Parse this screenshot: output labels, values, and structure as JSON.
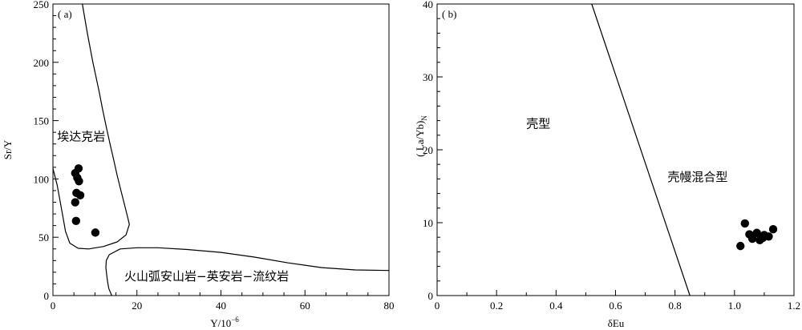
{
  "chart_data": [
    {
      "type": "scatter",
      "panel_label": "( a)",
      "xlabel": "Y/10",
      "xlabel_sup": "−6",
      "ylabel": "Sr/Y",
      "xlim": [
        0,
        80
      ],
      "ylim": [
        0,
        250
      ],
      "xticks": [
        0,
        20,
        40,
        60,
        80
      ],
      "yticks": [
        0,
        50,
        100,
        150,
        200,
        250
      ],
      "x_minor_step": 5,
      "y_minor_step": 10,
      "grid": false,
      "fields": [
        {
          "label": "埃达克岩",
          "x": 1,
          "y": 133
        },
        {
          "label": "火山弧安山岩−英安岩−流纹岩",
          "x": 17,
          "y": 13
        }
      ],
      "boundaries": [
        {
          "points": [
            [
              7,
              250
            ],
            [
              8.2,
              225
            ],
            [
              9.5,
              200
            ],
            [
              11,
              175
            ],
            [
              11.8,
              160
            ],
            [
              12.8,
              143
            ],
            [
              13.6,
              130
            ],
            [
              14.5,
              116
            ],
            [
              15.3,
              103
            ],
            [
              16.2,
              90
            ],
            [
              17.1,
              77
            ],
            [
              17.8,
              67
            ],
            [
              18.2,
              61
            ],
            [
              17.4,
              52
            ],
            [
              15.3,
              46
            ],
            [
              12,
              42
            ],
            [
              8.5,
              40
            ],
            [
              6,
              40.5
            ],
            [
              4,
              45
            ],
            [
              3,
              55
            ],
            [
              2,
              75
            ],
            [
              1,
              95
            ],
            [
              0,
              109
            ]
          ]
        },
        {
          "points": [
            [
              14,
              0
            ],
            [
              13.3,
              6
            ],
            [
              13,
              12
            ],
            [
              12.8,
              18
            ],
            [
              12.6,
              24
            ],
            [
              12.7,
              30
            ],
            [
              13.4,
              35
            ],
            [
              16,
              40
            ],
            [
              20,
              41
            ],
            [
              25,
              41
            ],
            [
              32,
              39.5
            ],
            [
              40,
              37
            ],
            [
              48,
              33
            ],
            [
              56,
              28
            ],
            [
              64,
              24
            ],
            [
              72,
              22
            ],
            [
              80,
              21.5
            ]
          ]
        }
      ],
      "series": [
        {
          "points": [
            [
              5.3,
              105
            ],
            [
              5.8,
              101
            ],
            [
              6.2,
              98
            ],
            [
              6.1,
              109
            ],
            [
              5.6,
              88
            ],
            [
              5.3,
              80
            ],
            [
              5.5,
              64
            ],
            [
              6.5,
              86
            ],
            [
              10.1,
              54
            ]
          ]
        }
      ]
    },
    {
      "type": "scatter",
      "panel_label": "( b)",
      "xlabel": "δEu",
      "ylabel": "( La/Yb)",
      "ylabel_sub": "N",
      "xlim": [
        0,
        1.2
      ],
      "ylim": [
        0,
        40
      ],
      "xticks": [
        0,
        0.2,
        0.4,
        0.6,
        0.8,
        1.0,
        1.2
      ],
      "xtick_labels": [
        "0",
        "0.2",
        "0.4",
        "0.6",
        "0.8",
        "1.0",
        "1.2"
      ],
      "yticks": [
        0,
        10,
        20,
        30,
        40
      ],
      "x_minor_step": 0.1,
      "y_minor_step": 2,
      "grid": false,
      "fields": [
        {
          "label": "壳型",
          "x": 0.3,
          "y": 23
        },
        {
          "label": "壳幔混合型",
          "x": 0.775,
          "y": 15.7
        }
      ],
      "boundaries": [
        {
          "points": [
            [
              0.52,
              40
            ],
            [
              0.85,
              0
            ]
          ]
        }
      ],
      "series": [
        {
          "points": [
            [
              1.02,
              6.8
            ],
            [
              1.035,
              9.9
            ],
            [
              1.05,
              8.4
            ],
            [
              1.06,
              7.8
            ],
            [
              1.075,
              8.6
            ],
            [
              1.085,
              7.6
            ],
            [
              1.095,
              7.9
            ],
            [
              1.1,
              8.3
            ],
            [
              1.115,
              8.1
            ],
            [
              1.13,
              9.1
            ]
          ]
        }
      ]
    }
  ]
}
